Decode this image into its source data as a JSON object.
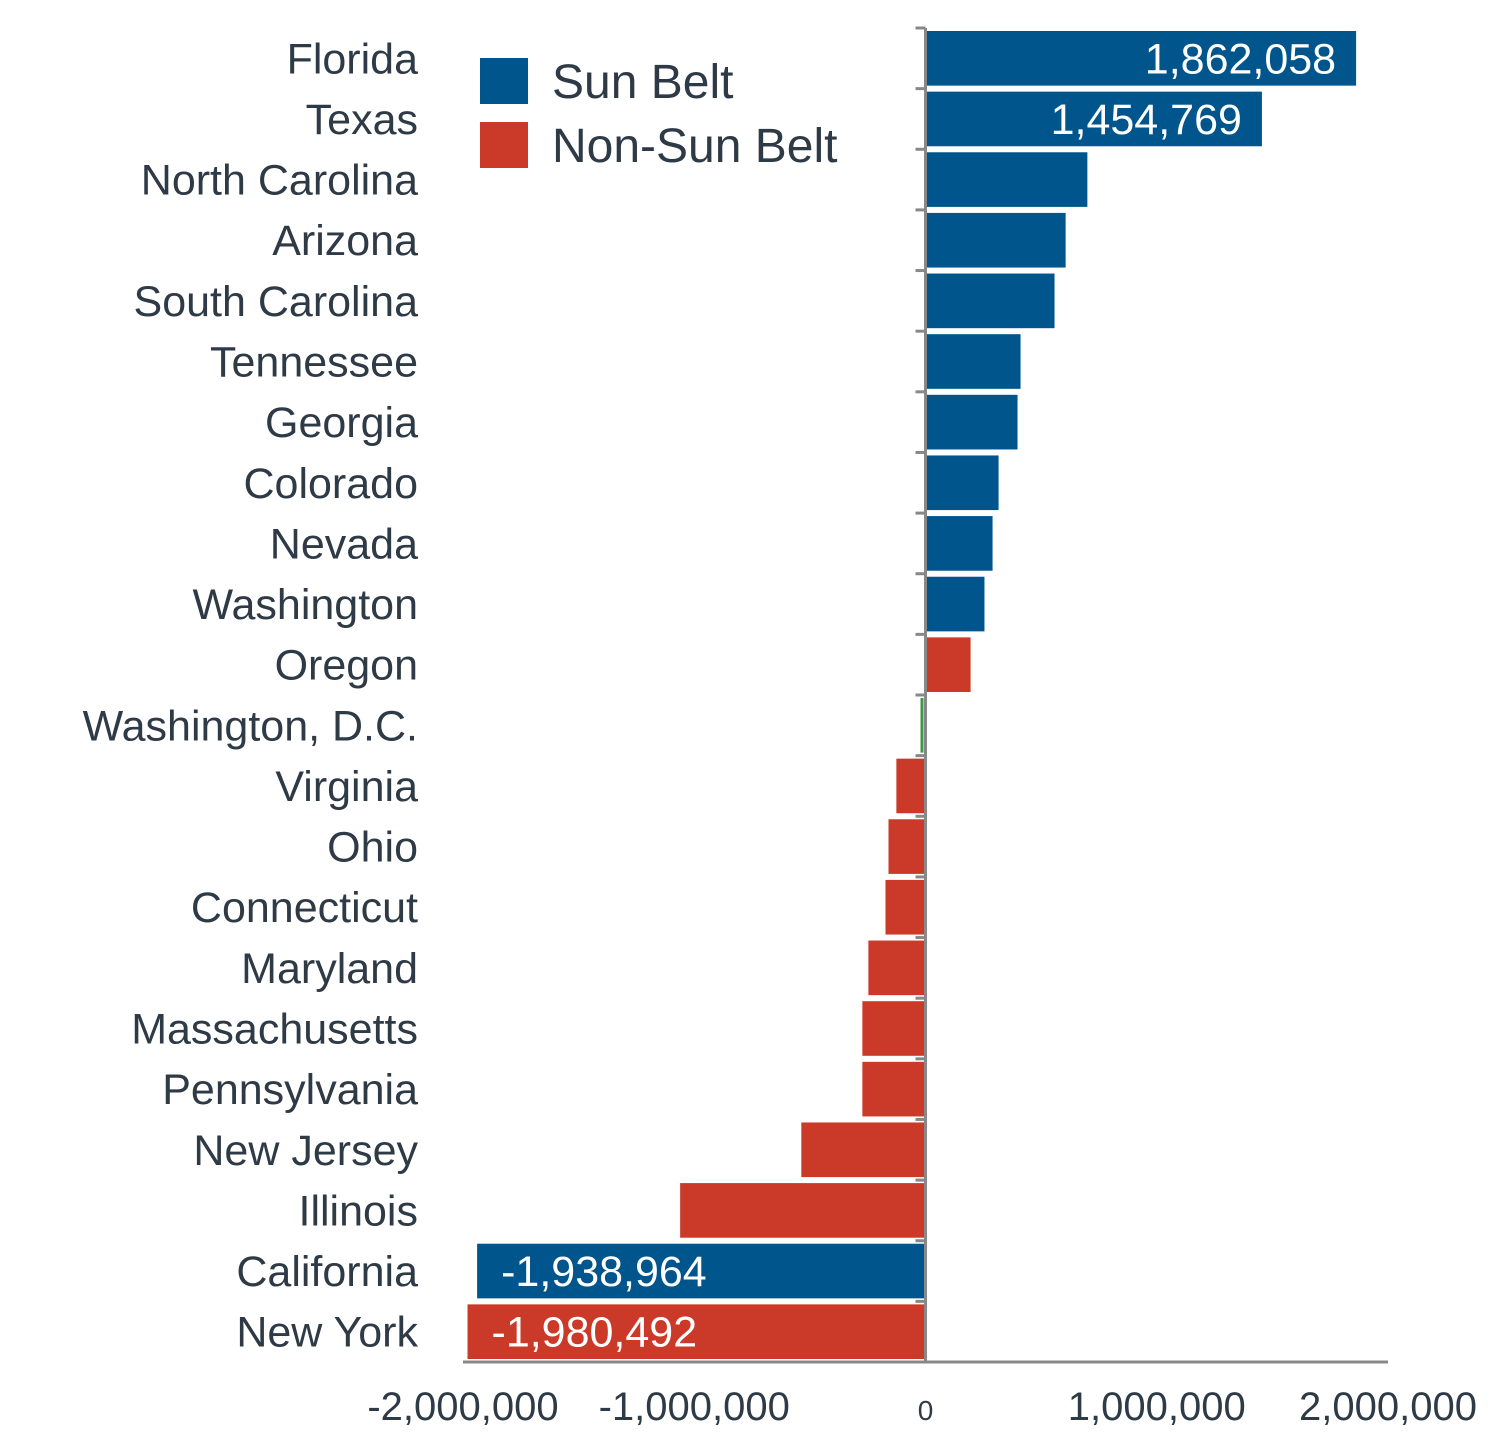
{
  "chart_data": {
    "type": "bar",
    "orientation": "horizontal",
    "title": "",
    "xlabel": "",
    "ylabel": "",
    "xlim": [
      -2000000,
      2000000
    ],
    "x_ticks": [
      {
        "value": -2000000,
        "label": "-2,000,000"
      },
      {
        "value": -1000000,
        "label": "-1,000,000"
      },
      {
        "value": 0,
        "label": "0"
      },
      {
        "value": 1000000,
        "label": "1,000,000"
      },
      {
        "value": 2000000,
        "label": "2,000,000"
      }
    ],
    "grid": false,
    "legend": {
      "placement": "top-left",
      "entries": [
        {
          "name": "Sun Belt",
          "color": "#00558c"
        },
        {
          "name": "Non-Sun Belt",
          "color": "#cb3a29"
        }
      ]
    },
    "colors": {
      "sun_belt": "#00558c",
      "non_sun_belt": "#cb3a29",
      "other": "#3a9a4a"
    },
    "categories": [
      "Florida",
      "Texas",
      "North Carolina",
      "Arizona",
      "South Carolina",
      "Tennessee",
      "Georgia",
      "Colorado",
      "Nevada",
      "Washington",
      "Oregon",
      "Washington, D.C.",
      "Virginia",
      "Ohio",
      "Connecticut",
      "Maryland",
      "Massachusetts",
      "Pennsylvania",
      "New Jersey",
      "Illinois",
      "California",
      "New York"
    ],
    "values": [
      1862058,
      1454769,
      700000,
      606000,
      558000,
      411000,
      398000,
      316000,
      290000,
      255000,
      195000,
      -15000,
      -126000,
      -160000,
      -173000,
      -247000,
      -273000,
      -273000,
      -537000,
      -1061000,
      -1938964,
      -1980492
    ],
    "bar_colors": [
      "#00558c",
      "#00558c",
      "#00558c",
      "#00558c",
      "#00558c",
      "#00558c",
      "#00558c",
      "#00558c",
      "#00558c",
      "#00558c",
      "#cb3a29",
      "#3a9a4a",
      "#cb3a29",
      "#cb3a29",
      "#cb3a29",
      "#cb3a29",
      "#cb3a29",
      "#cb3a29",
      "#cb3a29",
      "#cb3a29",
      "#00558c",
      "#cb3a29"
    ],
    "data_labels": [
      "1,862,058",
      "1,454,769",
      "",
      "",
      "",
      "",
      "",
      "",
      "",
      "",
      "",
      "",
      "",
      "",
      "",
      "",
      "",
      "",
      "",
      "",
      "-1,938,964",
      "-1,980,492"
    ]
  }
}
